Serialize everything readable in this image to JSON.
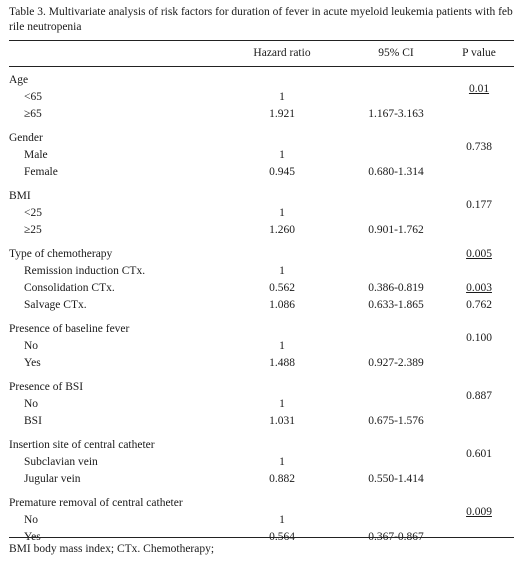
{
  "caption": "Table 3. Multivariate analysis of risk factors for duration of fever in acute myeloid leukemia patients with feb rile neutropenia",
  "headers": {
    "hazard_ratio": "Hazard ratio",
    "ci": "95% CI",
    "p_value": "P value"
  },
  "groups": [
    {
      "label": "Age",
      "rows": [
        {
          "label": "<65",
          "hr": "1",
          "ci": "",
          "p": "0.01",
          "p_underline": true,
          "p_row": 0
        },
        {
          "label": "≥65",
          "hr": "1.921",
          "ci": "1.167-3.163",
          "p": ""
        }
      ]
    },
    {
      "label": "Gender",
      "rows": [
        {
          "label": "Male",
          "hr": "1",
          "ci": "",
          "p": "0.738",
          "p_underline": false
        },
        {
          "label": "Female",
          "hr": "0.945",
          "ci": "0.680-1.314",
          "p": ""
        }
      ]
    },
    {
      "label": "BMI",
      "rows": [
        {
          "label": "<25",
          "hr": "1",
          "ci": "",
          "p": "0.177",
          "p_underline": false
        },
        {
          "label": "≥25",
          "hr": "1.260",
          "ci": "0.901-1.762",
          "p": ""
        }
      ]
    },
    {
      "label": "Type of chemotherapy",
      "p": "0.005",
      "p_underline": true,
      "rows": [
        {
          "label": "Remission induction CTx.",
          "hr": "1",
          "ci": "",
          "p": ""
        },
        {
          "label": "Consolidation CTx.",
          "hr": "0.562",
          "ci": "0.386-0.819",
          "p": "0.003",
          "p_underline": true
        },
        {
          "label": "Salvage CTx.",
          "hr": "1.086",
          "ci": "0.633-1.865",
          "p": "0.762",
          "p_underline": false
        }
      ]
    },
    {
      "label": "Presence of baseline fever",
      "rows": [
        {
          "label": "No",
          "hr": "1",
          "ci": "",
          "p": "0.100",
          "p_underline": false
        },
        {
          "label": "Yes",
          "hr": "1.488",
          "ci": "0.927-2.389",
          "p": ""
        }
      ]
    },
    {
      "label": "Presence of BSI",
      "rows": [
        {
          "label": "No",
          "hr": "1",
          "ci": "",
          "p": "0.887",
          "p_underline": false
        },
        {
          "label": "BSI",
          "hr": "1.031",
          "ci": "0.675-1.576",
          "p": ""
        }
      ]
    },
    {
      "label": "Insertion site of central catheter",
      "rows": [
        {
          "label": "Subclavian vein",
          "hr": "1",
          "ci": "",
          "p": "0.601",
          "p_underline": false
        },
        {
          "label": "Jugular vein",
          "hr": "0.882",
          "ci": "0.550-1.414",
          "p": ""
        }
      ]
    },
    {
      "label": "Premature removal of central catheter",
      "rows": [
        {
          "label": "No",
          "hr": "1",
          "ci": "",
          "p": "0.009",
          "p_underline": true
        },
        {
          "label": "Yes",
          "hr": "0.564",
          "ci": "0.367-0.867",
          "p": ""
        }
      ]
    }
  ],
  "footnote": "BMI body mass index; CTx. Chemotherapy;"
}
